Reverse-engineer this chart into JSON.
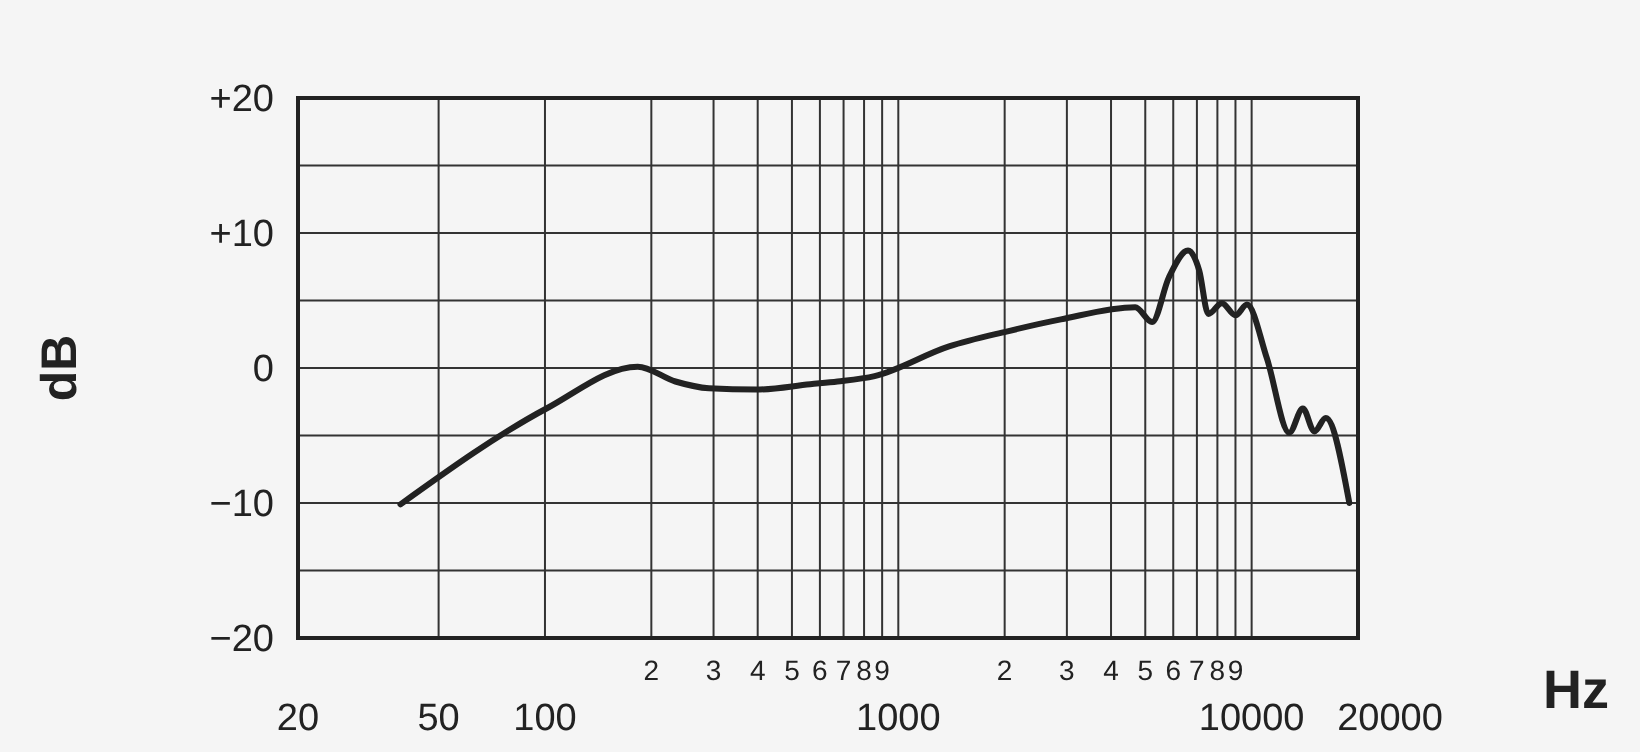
{
  "chart_data": {
    "type": "line",
    "xlabel": "Hz",
    "ylabel": "dB",
    "log": "x",
    "grid": true,
    "marker": "none",
    "line_style": "solid",
    "xlim": [
      20,
      20000
    ],
    "ylim": [
      -20,
      20
    ],
    "xticks": [
      20,
      50,
      100,
      {
        "value": 200,
        "label": null
      },
      {
        "value": 300,
        "label": null
      },
      {
        "value": 400,
        "label": null
      },
      {
        "value": 500,
        "label": null
      },
      {
        "value": 600,
        "label": null
      },
      {
        "value": 700,
        "label": null
      },
      {
        "value": 800,
        "label": null
      },
      {
        "value": 900,
        "label": null
      },
      1000,
      {
        "value": 2000,
        "label": null
      },
      {
        "value": 3000,
        "label": null
      },
      {
        "value": 4000,
        "label": null
      },
      {
        "value": 5000,
        "label": null
      },
      {
        "value": 6000,
        "label": null
      },
      {
        "value": 7000,
        "label": null
      },
      {
        "value": 8000,
        "label": null
      },
      {
        "value": 9000,
        "label": null
      },
      10000,
      20000
    ],
    "annotations": [
      "2",
      "3",
      "4",
      "5",
      "6",
      "7",
      "8",
      "9",
      "2",
      "3",
      "4",
      "5",
      "6",
      "7",
      "8",
      "9"
    ],
    "yticks": [
      {
        "value": -20,
        "label": "−20"
      },
      {
        "value": -15,
        "label": null
      },
      {
        "value": -10,
        "label": "−10"
      },
      {
        "value": -5,
        "label": null
      },
      0,
      {
        "value": 5,
        "label": null
      },
      {
        "value": 10,
        "label": "+10"
      },
      {
        "value": 15,
        "label": null
      },
      {
        "value": 20,
        "label": "+20"
      }
    ],
    "series": [
      {
        "color": "#222222",
        "x": [
          39,
          101,
          183,
          234,
          291,
          396,
          563,
          673,
          857,
          1392,
          2024,
          2885,
          4685,
          5228,
          5830,
          6607,
          7110,
          7540,
          8240,
          9000,
          9700,
          11050,
          12780,
          13960,
          15050,
          16210,
          18900
        ],
        "values": [
          -10.1,
          -3.0,
          0.1,
          -1.0,
          -1.5,
          -1.6,
          -1.2,
          -1.0,
          -0.6,
          1.6,
          2.7,
          3.6,
          4.5,
          3.4,
          6.7,
          8.7,
          7.2,
          4.0,
          4.8,
          3.9,
          4.7,
          0.7,
          -4.8,
          -3.0,
          -4.7,
          -3.7,
          -10.0
        ]
      }
    ]
  }
}
